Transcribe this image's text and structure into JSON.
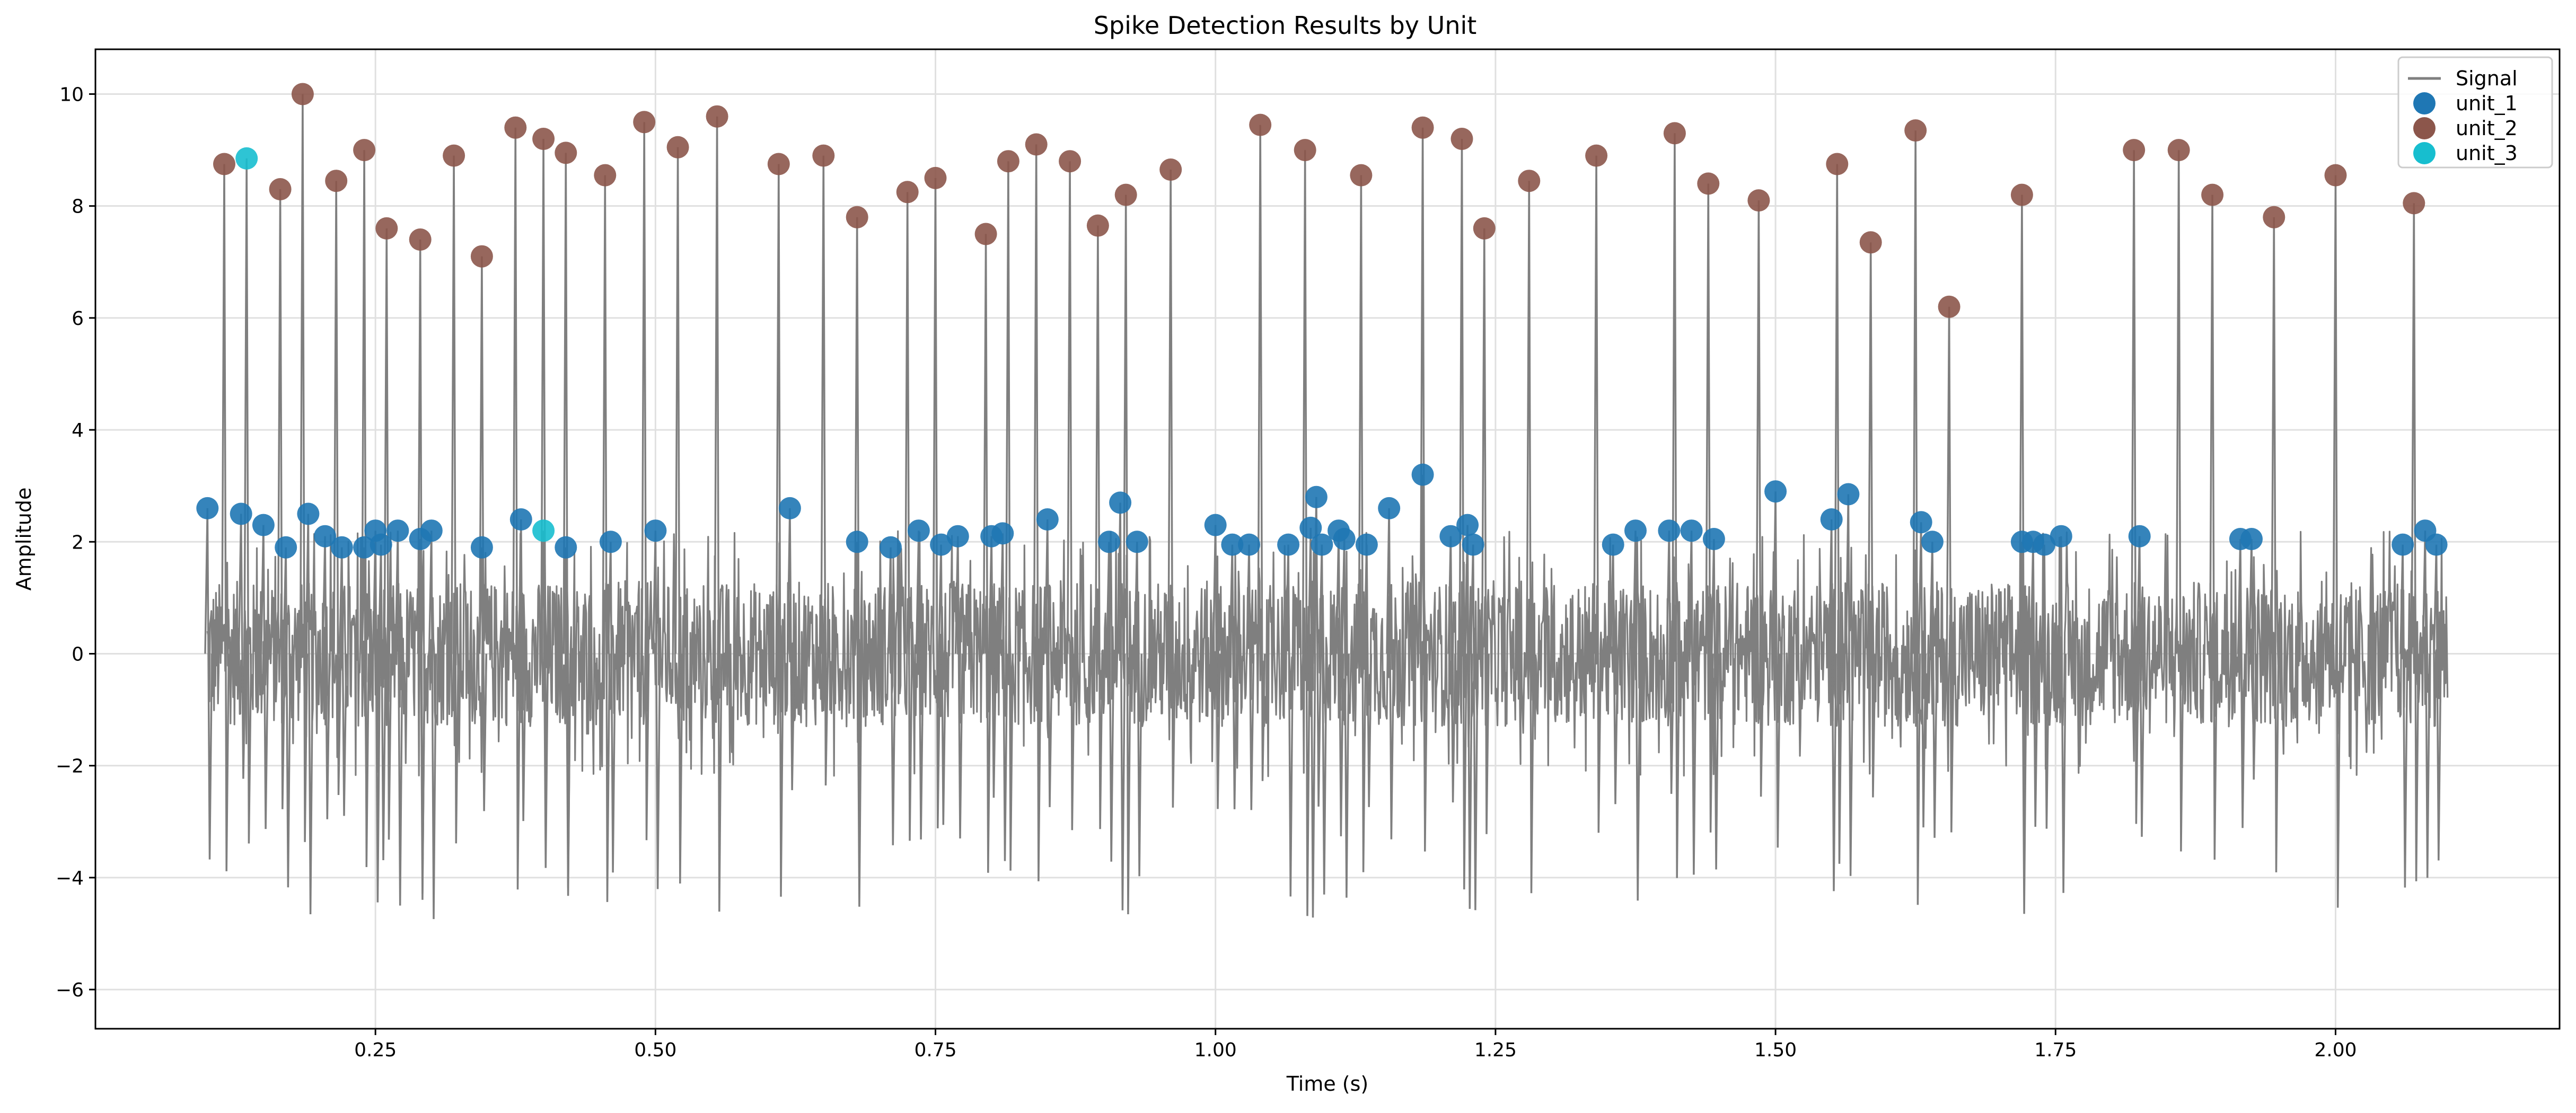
{
  "chart_data": {
    "type": "scatter",
    "title": "Spike Detection Results by Unit",
    "xlabel": "Time (s)",
    "ylabel": "Amplitude",
    "xlim": [
      0.0,
      2.2
    ],
    "ylim": [
      -6.7,
      10.8
    ],
    "xticks": [
      0.25,
      0.5,
      0.75,
      1.0,
      1.25,
      1.5,
      1.75,
      2.0
    ],
    "xtick_labels": [
      "0.25",
      "0.50",
      "0.75",
      "1.00",
      "1.25",
      "1.50",
      "1.75",
      "2.00"
    ],
    "yticks": [
      -6,
      -4,
      -2,
      0,
      2,
      4,
      6,
      8,
      10
    ],
    "ytick_labels": [
      "−6",
      "−4",
      "−2",
      "0",
      "2",
      "4",
      "6",
      "8",
      "10"
    ],
    "grid": true,
    "legend_position": "top-right",
    "signal": {
      "name": "Signal",
      "color": "#7f7f7f",
      "x_range": [
        0.1,
        2.1
      ],
      "noise_band": [
        -2.0,
        2.0
      ]
    },
    "series": [
      {
        "name": "unit_1",
        "color": "#1f77b4",
        "x": [
          0.1,
          0.13,
          0.15,
          0.17,
          0.19,
          0.205,
          0.22,
          0.24,
          0.25,
          0.255,
          0.27,
          0.29,
          0.3,
          0.345,
          0.38,
          0.42,
          0.46,
          0.5,
          0.62,
          0.68,
          0.71,
          0.735,
          0.755,
          0.77,
          0.8,
          0.81,
          0.85,
          0.905,
          0.915,
          0.93,
          1.0,
          1.015,
          1.03,
          1.065,
          1.085,
          1.09,
          1.095,
          1.11,
          1.115,
          1.135,
          1.155,
          1.185,
          1.21,
          1.225,
          1.23,
          1.355,
          1.375,
          1.405,
          1.425,
          1.445,
          1.5,
          1.55,
          1.565,
          1.63,
          1.64,
          1.72,
          1.73,
          1.74,
          1.755,
          1.825,
          1.915,
          1.925,
          2.06,
          2.08,
          2.09
        ],
        "y": [
          2.6,
          2.5,
          2.3,
          1.9,
          2.5,
          2.1,
          1.9,
          1.9,
          2.2,
          1.95,
          2.2,
          2.05,
          2.2,
          1.9,
          2.4,
          1.9,
          2.0,
          2.2,
          2.6,
          2.0,
          1.9,
          2.2,
          1.95,
          2.1,
          2.1,
          2.15,
          2.4,
          2.0,
          2.7,
          2.0,
          2.3,
          1.95,
          1.95,
          1.95,
          2.25,
          2.8,
          1.95,
          2.2,
          2.05,
          1.95,
          2.6,
          3.2,
          2.1,
          2.3,
          1.95,
          1.95,
          2.2,
          2.2,
          2.2,
          2.05,
          2.9,
          2.4,
          2.85,
          2.35,
          2.0,
          2.0,
          2.0,
          1.95,
          2.1,
          2.1,
          2.05,
          2.05,
          1.95,
          2.2,
          1.95
        ]
      },
      {
        "name": "unit_2",
        "color": "#8c564b",
        "x": [
          0.115,
          0.165,
          0.185,
          0.215,
          0.24,
          0.26,
          0.29,
          0.32,
          0.345,
          0.375,
          0.4,
          0.42,
          0.455,
          0.49,
          0.52,
          0.555,
          0.61,
          0.65,
          0.68,
          0.725,
          0.75,
          0.795,
          0.815,
          0.84,
          0.87,
          0.895,
          0.92,
          0.96,
          1.04,
          1.08,
          1.13,
          1.185,
          1.22,
          1.24,
          1.28,
          1.34,
          1.41,
          1.44,
          1.485,
          1.555,
          1.585,
          1.625,
          1.655,
          1.72,
          1.82,
          1.86,
          1.89,
          1.945,
          2.0,
          2.07
        ],
        "y": [
          8.75,
          8.3,
          10.0,
          8.45,
          9.0,
          7.6,
          7.4,
          8.9,
          7.1,
          9.4,
          9.2,
          8.95,
          8.55,
          9.5,
          9.05,
          9.6,
          8.75,
          8.9,
          7.8,
          8.25,
          8.5,
          7.5,
          8.8,
          9.1,
          8.8,
          7.65,
          8.2,
          8.65,
          9.45,
          9.0,
          8.55,
          9.4,
          9.2,
          7.6,
          8.45,
          8.9,
          9.3,
          8.4,
          8.1,
          8.75,
          7.35,
          9.35,
          6.2,
          8.2,
          9.0,
          9.0,
          8.2,
          7.8,
          8.55,
          8.05
        ]
      },
      {
        "name": "unit_3",
        "color": "#17becf",
        "x": [
          0.135,
          0.4
        ],
        "y": [
          8.85,
          2.2
        ]
      }
    ]
  }
}
